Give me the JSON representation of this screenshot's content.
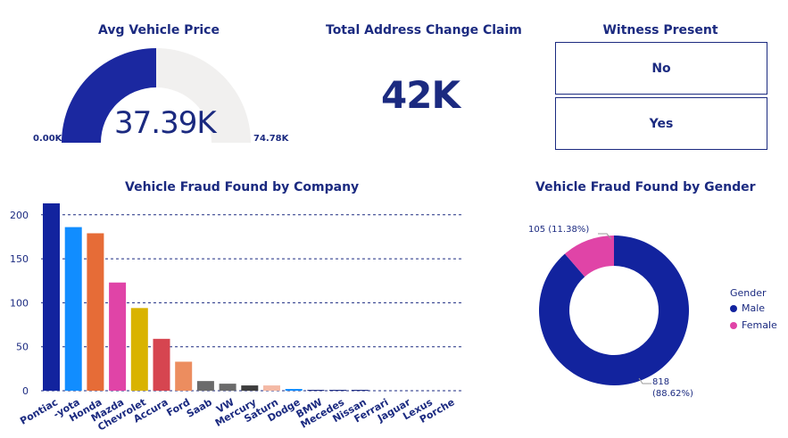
{
  "gauge": {
    "title": "Avg Vehicle Price",
    "value_label": "37.39K",
    "min_label": "0.00K",
    "max_label": "74.78K",
    "value": 37.39,
    "min": 0,
    "max": 74.78,
    "fill_color": "#1b28a0",
    "track_color": "#f1f0ef"
  },
  "card": {
    "title": "Total Address Change Claim",
    "value": "42K"
  },
  "slicer": {
    "title": "Witness Present",
    "options": [
      "No",
      "Yes"
    ]
  },
  "chart_data": [
    {
      "type": "bar",
      "title": "Vehicle Fraud Found by Company",
      "categories": [
        "Pontiac",
        "-yota",
        "Honda",
        "Mazda",
        "Chevrolet",
        "Accura",
        "Ford",
        "Saab",
        "VW",
        "Mercury",
        "Saturn",
        "Dodge",
        "BMW",
        "Mecedes",
        "Nissan",
        "Ferrari",
        "Jaguar",
        "Lexus",
        "Porche"
      ],
      "values": [
        213,
        186,
        179,
        123,
        94,
        59,
        33,
        11,
        8,
        6,
        6,
        2,
        1,
        1,
        1,
        0,
        0,
        0,
        0
      ],
      "colors": [
        "#12239e",
        "#118dff",
        "#e66c37",
        "#e044a7",
        "#d9b300",
        "#d64550",
        "#ec8d5f",
        "#6b6b6b",
        "#6b6b6b",
        "#3d3d3d",
        "#f4b9a5",
        "#118dff",
        "#1b2a80",
        "#1b2a80",
        "#1b2a80",
        "#1b2a80",
        "#1b2a80",
        "#1b2a80",
        "#1b2a80"
      ],
      "yticks": [
        0,
        50,
        100,
        150,
        200
      ],
      "ylim": [
        0,
        215
      ],
      "grid": true,
      "xlabel": "",
      "ylabel": ""
    },
    {
      "type": "pie",
      "title": "Vehicle Fraud Found by Gender",
      "legend_title": "Gender",
      "legend_position": "right",
      "slices": [
        {
          "label": "Male",
          "value": 818,
          "percent_label": "(88.62%)",
          "value_label": "818",
          "color": "#12239e"
        },
        {
          "label": "Female",
          "value": 105,
          "percent_label": "(11.38%)",
          "value_label": "105",
          "color": "#e044a7"
        }
      ]
    }
  ]
}
